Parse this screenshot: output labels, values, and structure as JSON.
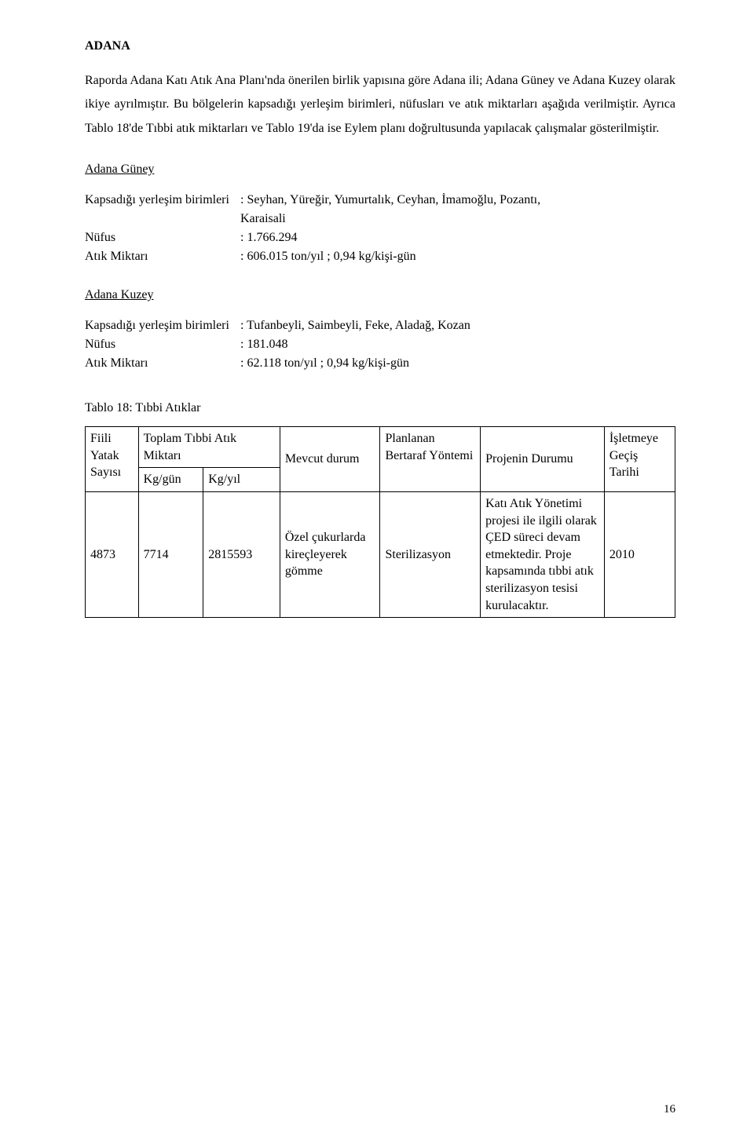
{
  "title": "ADANA",
  "intro_para": "Raporda Adana Katı Atık Ana Planı'nda önerilen birlik yapısına göre Adana ili; Adana Güney ve Adana Kuzey olarak ikiye ayrılmıştır. Bu bölgelerin kapsadığı yerleşim birimleri, nüfusları ve atık miktarları aşağıda verilmiştir. Ayrıca Tablo 18'de Tıbbi atık miktarları ve Tablo 19'da ise Eylem planı doğrultusunda yapılacak çalışmalar gösterilmiştir.",
  "guney": {
    "heading": "Adana Güney",
    "kapsam_label": "Kapsadığı yerleşim birimleri",
    "kapsam_value_line1": ": Seyhan, Yüreğir, Yumurtalık, Ceyhan, İmamoğlu, Pozantı,",
    "kapsam_value_line2": "Karaisali",
    "nufus_label": "Nüfus",
    "nufus_value": ": 1.766.294",
    "atik_label": "Atık Miktarı",
    "atik_value": ": 606.015 ton/yıl ; 0,94 kg/kişi-gün"
  },
  "kuzey": {
    "heading": "Adana Kuzey",
    "kapsam_label": "Kapsadığı yerleşim birimleri",
    "kapsam_value": ": Tufanbeyli, Saimbeyli, Feke, Aladağ, Kozan",
    "nufus_label": "Nüfus",
    "nufus_value": ": 181.048",
    "atik_label": "Atık Miktarı",
    "atik_value": ": 62.118 ton/yıl ; 0,94 kg/kişi-gün"
  },
  "table18": {
    "caption": "Tablo 18: Tıbbi Atıklar",
    "headers": {
      "fiili": "Fiili Yatak Sayısı",
      "toplam_top": "Toplam Tıbbi Atık Miktarı",
      "kg_gun": "Kg/gün",
      "kg_yil": "Kg/yıl",
      "mevcut": "Mevcut durum",
      "planlanan": "Planlanan Bertaraf Yöntemi",
      "projenin": "Projenin Durumu",
      "isletmeye": "İşletmeye Geçiş Tarihi"
    },
    "row": {
      "fiili": "4873",
      "kg_gun": "7714",
      "kg_yil": "2815593",
      "mevcut": "Özel çukurlarda kireçleyerek gömme",
      "planlanan": "Sterilizasyon",
      "projenin": "Katı Atık Yönetimi projesi ile ilgili olarak ÇED süreci devam etmektedir. Proje kapsamında tıbbi atık sterilizasyon tesisi kurulacaktır.",
      "isletmeye": "2010"
    }
  },
  "page_number": "16"
}
